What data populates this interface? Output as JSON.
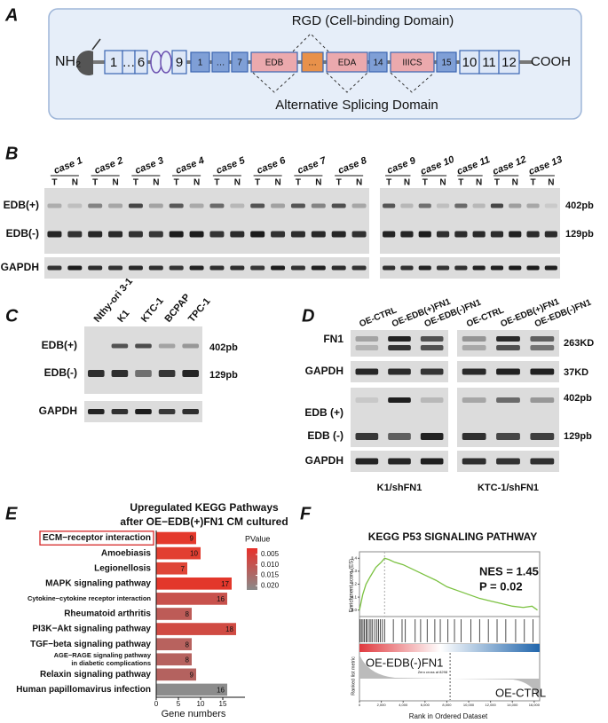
{
  "panel_labels": [
    "A",
    "B",
    "C",
    "D",
    "E",
    "F"
  ],
  "panel_a": {
    "top_label": "RGD (Cell-binding Domain)",
    "bottom_label": "Alternative Splicing Domain",
    "n_term": "NH₂",
    "c_term": "COOH",
    "domains": [
      "1",
      "…",
      "6",
      "9",
      "1",
      "…",
      "7",
      "EDB",
      "…",
      "EDA",
      "14",
      "IIICS",
      "15",
      "10",
      "11",
      "12"
    ]
  },
  "panel_b": {
    "cases": [
      "case 1",
      "case 2",
      "case 3",
      "case 4",
      "case 5",
      "case 6",
      "case 7",
      "case 8",
      "case 9",
      "case 10",
      "case 11",
      "case 12",
      "case 13"
    ],
    "lanes": [
      "T",
      "N"
    ],
    "rows": [
      "EDB(+)",
      "EDB(-)",
      "GAPDH"
    ],
    "sizes": [
      "402pb",
      "129pb"
    ]
  },
  "panel_c": {
    "samples": [
      "Nthy-ori 3-1",
      "K1",
      "KTC-1",
      "BCPAP",
      "TPC-1"
    ],
    "rows": [
      "EDB(+)",
      "EDB(-)",
      "GAPDH"
    ],
    "sizes": [
      "402pb",
      "129pb"
    ]
  },
  "panel_d": {
    "groups": [
      "OE-CTRL",
      "OE-EDB(+)FN1",
      "OE-EDB(-)FN1"
    ],
    "rows": [
      "FN1",
      "GAPDH",
      "EDB (+)",
      "EDB (-)",
      "GAPDH"
    ],
    "sizes": [
      "263KD",
      "37KD",
      "402pb",
      "129pb"
    ],
    "cell_lines": [
      "K1/shFN1",
      "KTC-1/shFN1"
    ]
  },
  "chart_data": [
    {
      "type": "bar",
      "orientation": "horizontal",
      "title": "Upregulated KEGG Pathways\nafter OE−EDB(+)FN1 CM cultured",
      "categories": [
        "ECM−receptor interaction",
        "Amoebiasis",
        "Legionellosis",
        "MAPK signaling pathway",
        "Cytokine−cytokine receptor interaction",
        "Rheumatoid arthritis",
        "PI3K−Akt signaling pathway",
        "TGF−beta signaling pathway",
        "AGE−RAGE signaling pathway\nin diabetic complications",
        "Relaxin signaling pathway",
        "Human papillomavirus infection"
      ],
      "values": [
        9,
        10,
        7,
        17,
        16,
        8,
        18,
        8,
        8,
        9,
        16
      ],
      "colors": [
        "#e4392c",
        "#e23f31",
        "#df4537",
        "#e3372b",
        "#c8524d",
        "#bd5b57",
        "#d04b43",
        "#b8625e",
        "#b6625f",
        "#b4625f",
        "#8c8c8c"
      ],
      "highlight_index": 0,
      "xlabel": "Gene numbers",
      "xlim": [
        0,
        20
      ],
      "xticks": [
        0,
        5,
        10,
        15
      ],
      "legend": {
        "title": "PValue",
        "range": [
          0.002,
          0.022
        ],
        "colors": [
          "#e8302a",
          "#8a8a8a"
        ],
        "ticks": [
          0.005,
          {
            "value": 0.01,
            "label": "0.010"
          },
          0.015,
          {
            "value": 0.02,
            "label": "0.020"
          }
        ]
      }
    },
    {
      "type": "line",
      "title": "KEGG P53 SIGNALING PATHWAY",
      "ylabel": "Enrichment score (ES)",
      "ylabel2": "Ranked list metric",
      "xlabel": "Rank in Ordered Dataset",
      "x": [
        0,
        300,
        600,
        1000,
        1500,
        2000,
        2300,
        2700,
        3200,
        4000,
        5000,
        6000,
        7000,
        8000,
        9000,
        10000,
        11000,
        12000,
        13000,
        14000,
        15000,
        15800,
        16300
      ],
      "values": [
        0,
        0.12,
        0.2,
        0.26,
        0.33,
        0.37,
        0.4,
        0.39,
        0.37,
        0.35,
        0.31,
        0.27,
        0.23,
        0.18,
        0.15,
        0.12,
        0.09,
        0.07,
        0.05,
        0.03,
        0.02,
        0.03,
        0.0
      ],
      "color": "#7cc242",
      "xlim": [
        0,
        16500
      ],
      "ylim": [
        -0.05,
        0.45
      ],
      "yticks": [
        {
          "value": 0,
          "label": "0.0"
        },
        0.1,
        0.2,
        0.3,
        0.4
      ],
      "xticks": [
        0,
        {
          "value": 2000,
          "label": "2,000"
        },
        {
          "value": 4000,
          "label": "4,000"
        },
        {
          "value": 6000,
          "label": "6,000"
        },
        {
          "value": 8000,
          "label": "8,000"
        },
        {
          "value": 10000,
          "label": "10,000"
        },
        {
          "value": 12000,
          "label": "12,000"
        },
        {
          "value": 14000,
          "label": "14,000"
        },
        {
          "value": 16000,
          "label": "16,000"
        }
      ],
      "hits": [
        60,
        180,
        320,
        450,
        600,
        720,
        900,
        1050,
        1200,
        1400,
        1600,
        1750,
        1900,
        2100,
        2300,
        3100,
        3900,
        4200,
        5100,
        5600,
        6200,
        6900,
        7400,
        8100,
        8700,
        9300,
        10200,
        11000,
        11800,
        12600,
        13400,
        14300,
        15100,
        15900
      ],
      "annotations": [
        "NES = 1.45",
        "P = 0.02"
      ],
      "group_labels": [
        "OE-EDB(-)FN1",
        "OE-CTRL"
      ],
      "zero_cross": 8298,
      "zero_cross_label": "Zero cross at 8298"
    }
  ]
}
